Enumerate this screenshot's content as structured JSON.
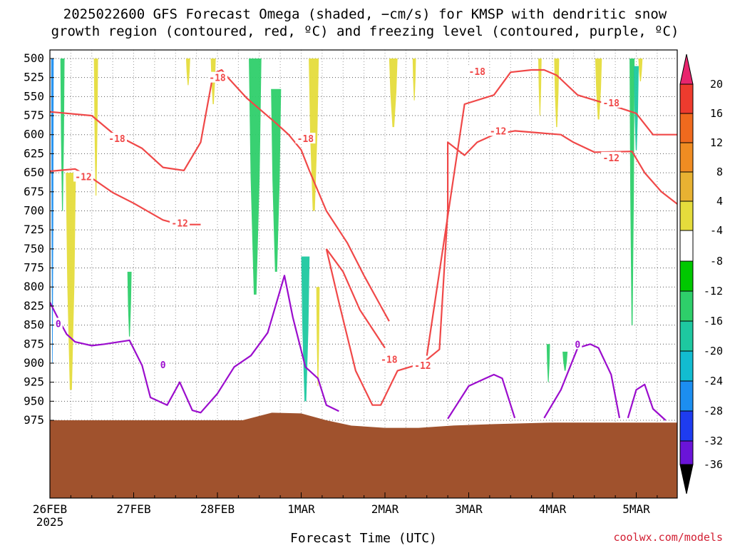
{
  "title_line1": "2025022600 GFS Forecast Omega (shaded, −cm/s) for KMSP with dendritic snow",
  "title_line2": "growth region (contoured, red, ºC) and freezing level (contoured, purple, ºC)",
  "xlabel": "Forecast Time (UTC)",
  "credit": "coolwx.com/models",
  "chart_data": {
    "type": "heatmap",
    "y_axis": {
      "label": "",
      "ticks": [
        "500",
        "525",
        "550",
        "575",
        "600",
        "625",
        "650",
        "675",
        "700",
        "725",
        "750",
        "775",
        "800",
        "825",
        "850",
        "875",
        "900",
        "925",
        "950",
        "975"
      ],
      "inverted": true
    },
    "x_axis": {
      "ticks": [
        {
          "label": "26FEB",
          "sub": "2025",
          "day": 0
        },
        {
          "label": "27FEB",
          "sub": "",
          "day": 1
        },
        {
          "label": "28FEB",
          "sub": "",
          "day": 2
        },
        {
          "label": "1MAR",
          "sub": "",
          "day": 3
        },
        {
          "label": "2MAR",
          "sub": "",
          "day": 4
        },
        {
          "label": "3MAR",
          "sub": "",
          "day": 5
        },
        {
          "label": "4MAR",
          "sub": "",
          "day": 6
        },
        {
          "label": "5MAR",
          "sub": "",
          "day": 7
        }
      ],
      "range_days": [
        0,
        7.5
      ]
    },
    "grid": true,
    "colorbar": {
      "labels": [
        "20",
        "16",
        "12",
        "8",
        "4",
        "-4",
        "-8",
        "-12",
        "-16",
        "-20",
        "-24",
        "-28",
        "-32",
        "-36"
      ],
      "bins": [
        {
          "color": "#e8256e"
        },
        {
          "color": "#ee3b2e"
        },
        {
          "color": "#f06a1e"
        },
        {
          "color": "#f08c22"
        },
        {
          "color": "#e8b232"
        },
        {
          "color": "#e5dc3c"
        },
        {
          "color": "#ffffff"
        },
        {
          "color": "#00c800"
        },
        {
          "color": "#2ecf6a"
        },
        {
          "color": "#1ec8a0"
        },
        {
          "color": "#12bcd0"
        },
        {
          "color": "#1c8ef0"
        },
        {
          "color": "#1e3cf0"
        },
        {
          "color": "#6a14d8"
        },
        {
          "color": "#9a10d0"
        },
        {
          "color": "#a0a0a0"
        },
        {
          "color": "#000000"
        }
      ]
    },
    "colors": {
      "snow_growth_contour": "#f04848",
      "freezing_level_contour": "#9b0dcd",
      "terrain": "#a0522d",
      "up_motion": "#00c800",
      "down_motion": "#e5dc3c"
    },
    "omega_patches": [
      {
        "day": 0.03,
        "p": [
          500,
          900
        ],
        "w": 0.03,
        "value": -20
      },
      {
        "day": 0.15,
        "p": [
          500,
          700
        ],
        "w": 0.05,
        "value": -8
      },
      {
        "day": 0.25,
        "p": [
          650,
          935
        ],
        "w": 0.12,
        "value": 6
      },
      {
        "day": 0.55,
        "p": [
          500,
          680
        ],
        "w": 0.05,
        "value": 6
      },
      {
        "day": 0.95,
        "p": [
          780,
          865
        ],
        "w": 0.05,
        "value": -8
      },
      {
        "day": 1.65,
        "p": [
          500,
          535
        ],
        "w": 0.05,
        "value": 6
      },
      {
        "day": 1.95,
        "p": [
          500,
          560
        ],
        "w": 0.06,
        "value": 6
      },
      {
        "day": 2.45,
        "p": [
          500,
          810
        ],
        "w": 0.15,
        "value": -8
      },
      {
        "day": 2.7,
        "p": [
          540,
          780
        ],
        "w": 0.12,
        "value": -8
      },
      {
        "day": 3.05,
        "p": [
          760,
          950
        ],
        "w": 0.1,
        "value": -12
      },
      {
        "day": 3.15,
        "p": [
          500,
          700
        ],
        "w": 0.12,
        "value": 6
      },
      {
        "day": 3.2,
        "p": [
          800,
          930
        ],
        "w": 0.04,
        "value": 6
      },
      {
        "day": 4.1,
        "p": [
          500,
          590
        ],
        "w": 0.1,
        "value": 6
      },
      {
        "day": 4.35,
        "p": [
          500,
          555
        ],
        "w": 0.04,
        "value": 6
      },
      {
        "day": 5.85,
        "p": [
          500,
          575
        ],
        "w": 0.04,
        "value": 6
      },
      {
        "day": 5.95,
        "p": [
          875,
          925
        ],
        "w": 0.04,
        "value": -8
      },
      {
        "day": 6.05,
        "p": [
          500,
          590
        ],
        "w": 0.06,
        "value": 6
      },
      {
        "day": 6.15,
        "p": [
          885,
          910
        ],
        "w": 0.06,
        "value": -8
      },
      {
        "day": 6.55,
        "p": [
          500,
          580
        ],
        "w": 0.08,
        "value": 6
      },
      {
        "day": 6.95,
        "p": [
          500,
          850
        ],
        "w": 0.06,
        "value": -8
      },
      {
        "day": 7.0,
        "p": [
          510,
          620
        ],
        "w": 0.06,
        "value": -12
      },
      {
        "day": 7.05,
        "p": [
          500,
          530
        ],
        "w": 0.05,
        "value": 6
      }
    ],
    "contours": {
      "minus18_a": {
        "level": -18,
        "points": [
          [
            0,
            570
          ],
          [
            0.5,
            575
          ],
          [
            0.75,
            598
          ],
          [
            1.1,
            618
          ],
          [
            1.35,
            643
          ],
          [
            1.6,
            647
          ],
          [
            1.8,
            610
          ],
          [
            1.95,
            520
          ],
          [
            2.05,
            515
          ],
          [
            2.15,
            528
          ],
          [
            2.35,
            552
          ],
          [
            2.7,
            585
          ],
          [
            2.85,
            600
          ],
          [
            3.0,
            620
          ],
          [
            3.1,
            648
          ],
          [
            3.3,
            700
          ],
          [
            3.55,
            742
          ],
          [
            3.75,
            785
          ],
          [
            3.95,
            825
          ],
          [
            4.05,
            845
          ]
        ]
      },
      "minus18_b": {
        "level": -18,
        "points": [
          [
            3.3,
            750
          ],
          [
            3.5,
            780
          ],
          [
            3.7,
            830
          ],
          [
            3.85,
            855
          ],
          [
            4.0,
            880
          ]
        ]
      },
      "minus18_c": {
        "level": -18,
        "points": [
          [
            4.5,
            890
          ],
          [
            4.95,
            560
          ],
          [
            5.3,
            548
          ],
          [
            5.5,
            518
          ],
          [
            5.75,
            515
          ],
          [
            5.9,
            515
          ],
          [
            6.05,
            522
          ],
          [
            6.3,
            548
          ],
          [
            6.75,
            563
          ],
          [
            7.0,
            572
          ],
          [
            7.2,
            600
          ],
          [
            7.5,
            600
          ]
        ]
      },
      "minus12_a": {
        "level": -12,
        "points": [
          [
            0,
            648
          ],
          [
            0.3,
            645
          ],
          [
            0.5,
            657
          ],
          [
            0.75,
            676
          ],
          [
            1.0,
            690
          ],
          [
            1.35,
            712
          ],
          [
            1.55,
            718
          ],
          [
            1.8,
            718
          ]
        ]
      },
      "minus12_b": {
        "level": -12,
        "points": [
          [
            3.3,
            750
          ],
          [
            3.45,
            820
          ],
          [
            3.65,
            910
          ],
          [
            3.85,
            955
          ],
          [
            3.95,
            955
          ],
          [
            4.15,
            910
          ],
          [
            4.45,
            900
          ],
          [
            4.65,
            882
          ],
          [
            4.75,
            700
          ],
          [
            4.75,
            610
          ],
          [
            4.95,
            627
          ],
          [
            5.1,
            610
          ],
          [
            5.3,
            600
          ],
          [
            5.55,
            595
          ],
          [
            6.1,
            600
          ],
          [
            6.25,
            610
          ],
          [
            6.5,
            623
          ],
          [
            6.95,
            622
          ],
          [
            7.1,
            650
          ],
          [
            7.3,
            675
          ],
          [
            7.5,
            692
          ]
        ]
      },
      "freezing_a": {
        "level": 0,
        "points": [
          [
            0,
            820
          ],
          [
            0.1,
            842
          ],
          [
            0.2,
            862
          ],
          [
            0.3,
            872
          ],
          [
            0.5,
            877
          ],
          [
            0.65,
            875
          ],
          [
            0.95,
            870
          ],
          [
            1.1,
            903
          ],
          [
            1.2,
            945
          ],
          [
            1.4,
            955
          ],
          [
            1.55,
            925
          ],
          [
            1.7,
            962
          ],
          [
            1.8,
            965
          ],
          [
            2.0,
            940
          ],
          [
            2.2,
            905
          ],
          [
            2.4,
            890
          ],
          [
            2.6,
            860
          ],
          [
            2.8,
            785
          ],
          [
            2.9,
            840
          ],
          [
            3.05,
            905
          ],
          [
            3.2,
            920
          ],
          [
            3.3,
            955
          ],
          [
            3.45,
            963
          ]
        ]
      },
      "freezing_b": {
        "level": 0,
        "points": [
          [
            4.75,
            973
          ],
          [
            5.0,
            930
          ],
          [
            5.2,
            920
          ],
          [
            5.3,
            915
          ],
          [
            5.4,
            920
          ],
          [
            5.55,
            972
          ]
        ]
      },
      "freezing_c": {
        "level": 0,
        "points": [
          [
            5.9,
            972
          ],
          [
            6.1,
            935
          ],
          [
            6.3,
            880
          ],
          [
            6.45,
            875
          ],
          [
            6.55,
            880
          ],
          [
            6.7,
            915
          ],
          [
            6.8,
            972
          ]
        ]
      },
      "freezing_d": {
        "level": 0,
        "points": [
          [
            6.9,
            972
          ],
          [
            7.0,
            935
          ],
          [
            7.1,
            928
          ],
          [
            7.2,
            960
          ],
          [
            7.35,
            975
          ]
        ]
      }
    },
    "contour_labels": [
      {
        "text": "-18",
        "day": 2.0,
        "p": 525,
        "kind": "red"
      },
      {
        "text": "-18",
        "day": 0.8,
        "p": 605,
        "kind": "red"
      },
      {
        "text": "-18",
        "day": 3.05,
        "p": 605,
        "kind": "red"
      },
      {
        "text": "-18",
        "day": 4.05,
        "p": 895,
        "kind": "red"
      },
      {
        "text": "-18",
        "day": 5.1,
        "p": 517,
        "kind": "red"
      },
      {
        "text": "-18",
        "day": 6.7,
        "p": 558,
        "kind": "red"
      },
      {
        "text": "-12",
        "day": 0.4,
        "p": 655,
        "kind": "red"
      },
      {
        "text": "-12",
        "day": 1.55,
        "p": 716,
        "kind": "red"
      },
      {
        "text": "-12",
        "day": 4.45,
        "p": 903,
        "kind": "red"
      },
      {
        "text": "-12",
        "day": 5.35,
        "p": 595,
        "kind": "red"
      },
      {
        "text": "-12",
        "day": 6.7,
        "p": 630,
        "kind": "red"
      },
      {
        "text": "0",
        "day": 0.1,
        "p": 848,
        "kind": "purple"
      },
      {
        "text": "0",
        "day": 1.35,
        "p": 902,
        "kind": "purple"
      },
      {
        "text": "0",
        "day": 6.3,
        "p": 875,
        "kind": "purple"
      }
    ],
    "terrain_pressure": [
      [
        0,
        975
      ],
      [
        2.3,
        975
      ],
      [
        2.65,
        965
      ],
      [
        3.0,
        966
      ],
      [
        3.3,
        975
      ],
      [
        3.6,
        982
      ],
      [
        4.0,
        985
      ],
      [
        4.4,
        985
      ],
      [
        4.8,
        982
      ],
      [
        5.3,
        980
      ],
      [
        6.0,
        978
      ],
      [
        7.0,
        978
      ],
      [
        7.5,
        978
      ]
    ]
  }
}
